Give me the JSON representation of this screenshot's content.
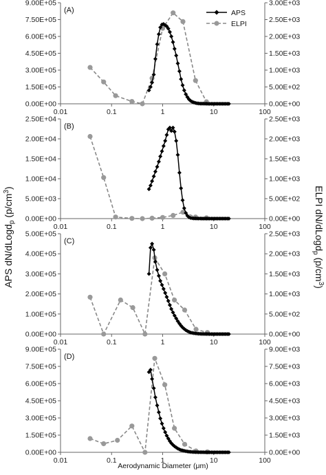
{
  "chart_data": [
    {
      "type": "line",
      "panel_label": "(A)",
      "x_ticks": [
        "0.01",
        "0.1",
        "1",
        "10",
        "100"
      ],
      "xlim": [
        0.01,
        100
      ],
      "log_x": true,
      "y_left_ticks": [
        "0.00E+00",
        "1.50E+05",
        "3.00E+05",
        "4.50E+05",
        "6.00E+05",
        "7.50E+05",
        "9.00E+05"
      ],
      "ylim_left": [
        0,
        900000
      ],
      "y_right_ticks": [
        "0.00E+00",
        "5.00E+02",
        "1.00E+03",
        "1.50E+03",
        "2.00E+03",
        "2.50E+03",
        "3.00E+03"
      ],
      "ylim_right": [
        0,
        3000
      ],
      "legend_position": "top-right",
      "series": [
        {
          "name": "APS",
          "axis": "left",
          "color": "#000000",
          "x": [
            0.54,
            0.58,
            0.62,
            0.67,
            0.72,
            0.78,
            0.84,
            0.9,
            0.97,
            1.04,
            1.12,
            1.2,
            1.29,
            1.38,
            1.48,
            1.59,
            1.71,
            1.84,
            1.98,
            2.13,
            2.29,
            2.46,
            2.64,
            2.84,
            3.05,
            3.28,
            3.52,
            3.79,
            4.07,
            4.37,
            4.7,
            5.05,
            5.43,
            5.83,
            6.26,
            6.73,
            7.23,
            7.77,
            8.35,
            8.98,
            9.65,
            10.37,
            11.14,
            11.97,
            12.86,
            13.82,
            14.86,
            15.96,
            17.15,
            18.43,
            19.81
          ],
          "y": [
            120000,
            150000,
            190000,
            260000,
            400000,
            530000,
            620000,
            680000,
            705000,
            710000,
            700000,
            690000,
            670000,
            640000,
            600000,
            550000,
            490000,
            430000,
            360000,
            290000,
            220000,
            165000,
            120000,
            85000,
            60000,
            40000,
            27000,
            18000,
            12000,
            8000,
            5000,
            3000,
            2000,
            1500,
            1000,
            600,
            400,
            300,
            200,
            100,
            80,
            60,
            40,
            30,
            20,
            10,
            5,
            5,
            0,
            0,
            0
          ]
        },
        {
          "name": "ELPI",
          "axis": "right",
          "color": "#888888",
          "x": [
            0.038,
            0.07,
            0.12,
            0.25,
            0.4,
            0.62,
            1.0,
            1.6,
            2.5,
            4.4,
            7.2
          ],
          "y": [
            1080,
            650,
            240,
            70,
            0,
            760,
            2240,
            2700,
            2440,
            690,
            60
          ]
        }
      ]
    },
    {
      "type": "line",
      "panel_label": "(B)",
      "x_ticks": [
        "0.01",
        "0.1",
        "1",
        "10",
        "100"
      ],
      "xlim": [
        0.01,
        100
      ],
      "log_x": true,
      "y_left_ticks": [
        "0.00E+00",
        "5.00E+03",
        "1.00E+04",
        "1.50E+04",
        "2.00E+04",
        "2.50E+04"
      ],
      "ylim_left": [
        0,
        25000
      ],
      "y_right_ticks": [
        "0.00E+00",
        "5.00E+02",
        "1.00E+03",
        "1.50E+03",
        "2.00E+03",
        "2.50E+03"
      ],
      "ylim_right": [
        0,
        2500
      ],
      "series": [
        {
          "name": "APS",
          "axis": "left",
          "color": "#000000",
          "x": [
            0.54,
            0.58,
            0.62,
            0.67,
            0.72,
            0.78,
            0.84,
            0.9,
            0.97,
            1.04,
            1.12,
            1.2,
            1.29,
            1.38,
            1.48,
            1.59,
            1.71,
            1.84,
            1.98,
            2.13,
            2.29,
            2.46,
            2.64,
            2.84,
            3.05,
            3.28,
            3.52,
            3.79,
            4.07,
            4.37,
            4.7,
            5.05,
            5.43,
            5.83,
            6.26,
            6.73,
            7.23,
            7.77,
            8.35,
            8.98,
            9.65,
            10.37,
            11.14,
            11.97,
            12.86,
            13.82,
            14.86,
            15.96,
            17.15,
            18.43,
            19.81
          ],
          "y": [
            7400,
            8300,
            9400,
            10600,
            11800,
            13000,
            14300,
            15600,
            16900,
            18200,
            19500,
            21000,
            22400,
            22800,
            22000,
            22800,
            21800,
            19500,
            16000,
            11500,
            7600,
            4600,
            2600,
            1400,
            700,
            350,
            180,
            100,
            60,
            40,
            25,
            15,
            10,
            5,
            3,
            2,
            1,
            1,
            0,
            0,
            0,
            0,
            0,
            0,
            0,
            0,
            0,
            0,
            0,
            0,
            0
          ]
        },
        {
          "name": "ELPI",
          "axis": "right",
          "color": "#888888",
          "x": [
            0.038,
            0.07,
            0.12,
            0.25,
            0.4,
            0.62,
            1.0,
            1.6,
            2.5,
            4.4,
            7.2
          ],
          "y": [
            2060,
            1030,
            40,
            5,
            0,
            10,
            30,
            80,
            160,
            40,
            20
          ]
        }
      ]
    },
    {
      "type": "line",
      "panel_label": "(C)",
      "x_ticks": [
        "0.01",
        "0.1",
        "1",
        "10",
        "100"
      ],
      "xlim": [
        0.01,
        100
      ],
      "log_x": true,
      "y_left_ticks": [
        "0.00E+00",
        "1.00E+05",
        "2.00E+05",
        "3.00E+05",
        "4.00E+05",
        "5.00E+05"
      ],
      "ylim_left": [
        0,
        500000
      ],
      "y_right_ticks": [
        "0.00E+00",
        "5.00E+02",
        "1.00E+03",
        "1.50E+03",
        "2.00E+03",
        "2.50E+03"
      ],
      "ylim_right": [
        0,
        2500
      ],
      "series": [
        {
          "name": "APS",
          "axis": "left",
          "color": "#000000",
          "x": [
            0.54,
            0.58,
            0.62,
            0.67,
            0.72,
            0.78,
            0.84,
            0.9,
            0.97,
            1.04,
            1.12,
            1.2,
            1.29,
            1.38,
            1.48,
            1.59,
            1.71,
            1.84,
            1.98,
            2.13,
            2.29,
            2.46,
            2.64,
            2.84,
            3.05,
            3.28,
            3.52,
            3.79,
            4.07,
            4.37,
            4.7,
            5.05,
            5.43,
            5.83,
            6.26,
            6.73,
            7.23,
            7.77,
            8.35,
            8.98,
            9.65,
            10.37,
            11.14,
            11.97,
            12.86,
            13.82,
            14.86,
            15.96,
            17.15,
            18.43,
            19.81
          ],
          "y": [
            300000,
            430000,
            450000,
            420000,
            360000,
            320000,
            290000,
            265000,
            245000,
            225000,
            205000,
            185000,
            165000,
            145000,
            125000,
            108000,
            92000,
            78000,
            64000,
            52000,
            42000,
            33000,
            26000,
            20000,
            15000,
            11000,
            8000,
            6000,
            4500,
            3300,
            2400,
            1700,
            1200,
            900,
            600,
            400,
            300,
            200,
            150,
            100,
            80,
            60,
            40,
            30,
            20,
            10,
            5,
            5,
            0,
            0,
            0
          ]
        },
        {
          "name": "ELPI",
          "axis": "right",
          "color": "#888888",
          "x": [
            0.038,
            0.07,
            0.15,
            0.26,
            0.45,
            0.7,
            1.1,
            1.7,
            2.7,
            4.5,
            7.5
          ],
          "y": [
            920,
            0,
            850,
            660,
            0,
            1900,
            1500,
            850,
            600,
            120,
            40
          ]
        }
      ]
    },
    {
      "type": "line",
      "panel_label": "(D)",
      "x_ticks": [
        "0.01",
        "0.1",
        "1",
        "10",
        "100"
      ],
      "xlim": [
        0.01,
        100
      ],
      "log_x": true,
      "y_left_ticks": [
        "0.00E+00",
        "1.50E+05",
        "3.00E+05",
        "4.50E+05",
        "6.00E+05",
        "7.50E+05",
        "9.00E+05"
      ],
      "ylim_left": [
        0,
        900000
      ],
      "y_right_ticks": [
        "0.00E+00",
        "1.50E+03",
        "3.00E+03",
        "4.50E+03",
        "6.00E+03",
        "7.50E+03",
        "9.00E+03"
      ],
      "ylim_right": [
        0,
        9000
      ],
      "series": [
        {
          "name": "APS",
          "axis": "left",
          "color": "#000000",
          "x": [
            0.54,
            0.58,
            0.62,
            0.67,
            0.72,
            0.78,
            0.84,
            0.9,
            0.97,
            1.04,
            1.12,
            1.2,
            1.29,
            1.38,
            1.48,
            1.59,
            1.71,
            1.84,
            1.98,
            2.13,
            2.29,
            2.46,
            2.64,
            2.84,
            3.05,
            3.28,
            3.52,
            3.79,
            4.07,
            4.37,
            4.7,
            5.05,
            5.43,
            5.83,
            6.26,
            6.73,
            7.23,
            7.77,
            8.35,
            8.98,
            9.65,
            10.37,
            11.14,
            11.97,
            12.86,
            13.82,
            14.86,
            15.96,
            17.15,
            18.43,
            19.81
          ],
          "y": [
            700000,
            720000,
            640000,
            560000,
            480000,
            410000,
            350000,
            295000,
            250000,
            210000,
            175000,
            145000,
            120000,
            98000,
            80000,
            65000,
            52000,
            42000,
            33000,
            26000,
            20000,
            16000,
            12500,
            9500,
            7200,
            5400,
            4000,
            3000,
            2200,
            1600,
            1200,
            900,
            650,
            480,
            350,
            250,
            180,
            130,
            90,
            60,
            40,
            30,
            20,
            15,
            10,
            5,
            3,
            2,
            0,
            0,
            0
          ]
        },
        {
          "name": "ELPI",
          "axis": "right",
          "color": "#888888",
          "x": [
            0.038,
            0.07,
            0.13,
            0.25,
            0.45,
            0.7,
            1.1,
            1.7,
            2.7,
            4.5,
            7.5
          ],
          "y": [
            1200,
            750,
            1050,
            2300,
            0,
            8200,
            5900,
            2100,
            700,
            120,
            40
          ]
        }
      ]
    }
  ],
  "axes": {
    "left_title_main": "APS dN/dLogd",
    "left_title_sub": "p",
    "left_title_unit": " (p/cm",
    "left_title_sup": "3",
    "left_title_close": ")",
    "right_title_main": "ELPI dN/dLogd",
    "right_title_sub": "p",
    "right_title_unit": " (p/cm",
    "right_title_sup": "3",
    "right_title_close": ")",
    "x_title": "Aerodynamic Diameter (μm)"
  },
  "legend": {
    "aps_label": "APS",
    "elpi_label": "ELPI"
  },
  "colors": {
    "aps": "#000000",
    "elpi": "#888888",
    "axis": "#555555"
  }
}
